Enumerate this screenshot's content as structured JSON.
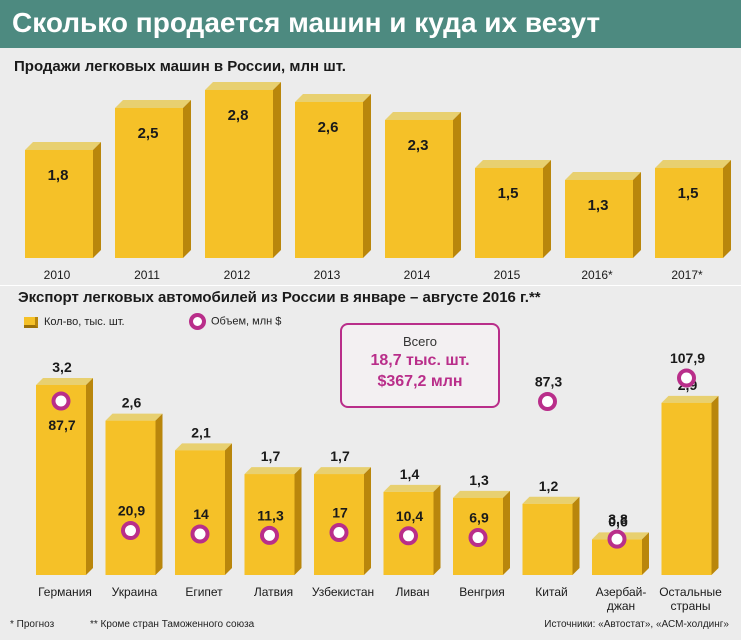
{
  "header": {
    "title": "Сколько продается машин и куда их везут"
  },
  "colors": {
    "header_bg": "#4d8a80",
    "bar_front": "#f5c128",
    "bar_side": "#b9860c",
    "bar_top": "#e8d070",
    "ring": "#b92e8a",
    "background": "#ececec"
  },
  "chart_data": [
    {
      "type": "bar",
      "title": "Продажи легковых машин в России, млн шт.",
      "categories": [
        "2010",
        "2011",
        "2012",
        "2013",
        "2014",
        "2015",
        "2016*",
        "2017*"
      ],
      "values": [
        1.8,
        2.5,
        2.8,
        2.6,
        2.3,
        1.5,
        1.3,
        1.5
      ],
      "value_labels": [
        "1,8",
        "2,5",
        "2,8",
        "2,6",
        "2,3",
        "1,5",
        "1,3",
        "1,5"
      ],
      "ylim": [
        0,
        2.8
      ]
    },
    {
      "type": "bar",
      "title": "Экспорт легковых автомобилей из России  в январе – августе 2016 г.**",
      "categories": [
        "Германия",
        "Украина",
        "Египет",
        "Латвия",
        "Узбекистан",
        "Ливан",
        "Венгрия",
        "Китай",
        "Азербай-\nджан",
        "Остальные\nстраны"
      ],
      "legend": {
        "quantity": "Кол-во, тыс. шт.",
        "volume": "Объем, млн $"
      },
      "series": [
        {
          "name": "Кол-во, тыс. шт.",
          "values": [
            3.2,
            2.6,
            2.1,
            1.7,
            1.7,
            1.4,
            1.3,
            1.2,
            0.6,
            2.9
          ],
          "value_labels": [
            "3,2",
            "2,6",
            "2,1",
            "1,7",
            "1,7",
            "1,4",
            "1,3",
            "1,2",
            "0,6",
            "2,9"
          ]
        },
        {
          "name": "Объем, млн $",
          "values": [
            87.7,
            20.9,
            14,
            11.3,
            17,
            10.4,
            6.9,
            87.3,
            3.8,
            107.9
          ],
          "value_labels": [
            "87,7",
            "20,9",
            "14",
            "11,3",
            "17",
            "10,4",
            "6,9",
            "87,3",
            "3,8",
            "107,9"
          ]
        }
      ],
      "total": {
        "label": "Всего",
        "quantity": "18,7 тыс. шт.",
        "volume": "$367,2 млн"
      }
    }
  ],
  "footnotes": {
    "forecast": "*  Прогноз",
    "customs": "**  Кроме стран Таможенного союза",
    "sources": "Источники: «Автостат», «АСМ-холдинг»"
  }
}
